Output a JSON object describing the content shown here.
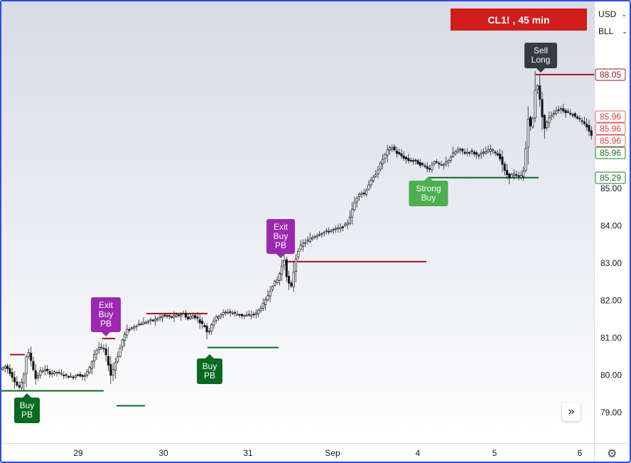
{
  "header": {
    "symbol_title": "CL1! , 45 min",
    "currency": "USD",
    "unit": "BLL"
  },
  "icons": {
    "chevron": "chevron-down-icon",
    "scroll": "double-chevron-right-icon",
    "settings": "gear-icon"
  },
  "colors": {
    "title_bg": "#d11d1d",
    "up_candle": "#0b6b0b",
    "down_candle": "#7a1010",
    "buy_label": "#0a6a1f",
    "strong_buy_label": "#4caf50",
    "exit_label": "#9c27b0",
    "sell_label": "#363a45",
    "support_line": "#0a6a1f",
    "resistance_line": "#a31515"
  },
  "chart_data": {
    "type": "candlestick",
    "x_axis": {
      "ticks": [
        "29",
        "30",
        "31",
        "Sep",
        "4",
        "5",
        "6"
      ]
    },
    "y_axis": {
      "ticks": [
        "79.00",
        "80.00",
        "81.00",
        "82.00",
        "83.00",
        "84.00",
        "85.00"
      ],
      "range": [
        78.4,
        89.9
      ]
    },
    "price_tags": [
      {
        "value": "88.05",
        "style": "red-outline"
      },
      {
        "value": "85.96",
        "style": "red-outline"
      },
      {
        "value": "85.96",
        "style": "red-outline"
      },
      {
        "value": "85.96",
        "style": "red-outline"
      },
      {
        "value": "85.96",
        "style": "green-outline"
      },
      {
        "value": "85.29",
        "style": "green-outline"
      }
    ],
    "signals": [
      {
        "text": [
          "Buy",
          "PB"
        ],
        "kind": "buy"
      },
      {
        "text": [
          "Exit",
          "Buy",
          "PB"
        ],
        "kind": "exit"
      },
      {
        "text": [
          "Buy",
          "PB"
        ],
        "kind": "buy"
      },
      {
        "text": [
          "Exit",
          "Buy",
          "PB"
        ],
        "kind": "exit"
      },
      {
        "text": [
          "Strong",
          "Buy"
        ],
        "kind": "strong"
      },
      {
        "text": [
          "Sell",
          "Long"
        ],
        "kind": "sell"
      }
    ],
    "levels": [
      {
        "price": 79.58,
        "type": "support"
      },
      {
        "price": 80.55,
        "type": "resistance"
      },
      {
        "price": 80.98,
        "type": "resistance"
      },
      {
        "price": 79.18,
        "type": "support"
      },
      {
        "price": 81.65,
        "type": "resistance"
      },
      {
        "price": 80.74,
        "type": "support"
      },
      {
        "price": 83.04,
        "type": "resistance"
      },
      {
        "price": 85.29,
        "type": "support"
      },
      {
        "price": 88.05,
        "type": "resistance"
      }
    ],
    "price_path": [
      [
        0,
        80.15
      ],
      [
        8,
        80.25
      ],
      [
        14,
        80.05
      ],
      [
        20,
        79.85
      ],
      [
        26,
        79.65
      ],
      [
        32,
        79.85
      ],
      [
        38,
        80.7
      ],
      [
        44,
        80.35
      ],
      [
        50,
        79.9
      ],
      [
        56,
        80.1
      ],
      [
        62,
        80.15
      ],
      [
        70,
        80.05
      ],
      [
        80,
        80.08
      ],
      [
        90,
        80.0
      ],
      [
        100,
        79.95
      ],
      [
        110,
        80.02
      ],
      [
        118,
        79.95
      ],
      [
        126,
        80.2
      ],
      [
        132,
        80.55
      ],
      [
        138,
        80.75
      ],
      [
        146,
        80.7
      ],
      [
        152,
        80.3
      ],
      [
        156,
        79.95
      ],
      [
        160,
        80.25
      ],
      [
        166,
        80.55
      ],
      [
        172,
        80.95
      ],
      [
        178,
        81.2
      ],
      [
        184,
        81.25
      ],
      [
        192,
        81.35
      ],
      [
        200,
        81.4
      ],
      [
        210,
        81.45
      ],
      [
        220,
        81.5
      ],
      [
        230,
        81.6
      ],
      [
        240,
        81.55
      ],
      [
        250,
        81.6
      ],
      [
        258,
        81.65
      ],
      [
        264,
        81.5
      ],
      [
        270,
        81.6
      ],
      [
        276,
        81.55
      ],
      [
        282,
        81.4
      ],
      [
        288,
        81.3
      ],
      [
        292,
        81.1
      ],
      [
        298,
        81.4
      ],
      [
        304,
        81.55
      ],
      [
        312,
        81.65
      ],
      [
        320,
        81.7
      ],
      [
        330,
        81.65
      ],
      [
        340,
        81.6
      ],
      [
        350,
        81.6
      ],
      [
        360,
        81.65
      ],
      [
        366,
        81.8
      ],
      [
        372,
        81.95
      ],
      [
        378,
        82.2
      ],
      [
        384,
        82.45
      ],
      [
        390,
        82.55
      ],
      [
        396,
        82.9
      ],
      [
        400,
        83.1
      ],
      [
        404,
        82.5
      ],
      [
        410,
        82.35
      ],
      [
        414,
        82.95
      ],
      [
        418,
        83.3
      ],
      [
        424,
        83.5
      ],
      [
        432,
        83.6
      ],
      [
        440,
        83.7
      ],
      [
        450,
        83.8
      ],
      [
        460,
        83.85
      ],
      [
        470,
        83.9
      ],
      [
        480,
        83.95
      ],
      [
        488,
        84.05
      ],
      [
        494,
        84.35
      ],
      [
        500,
        84.7
      ],
      [
        506,
        84.9
      ],
      [
        512,
        84.85
      ],
      [
        518,
        85.1
      ],
      [
        524,
        85.25
      ],
      [
        530,
        85.45
      ],
      [
        536,
        85.7
      ],
      [
        540,
        85.85
      ],
      [
        546,
        86.05
      ],
      [
        552,
        86.1
      ],
      [
        558,
        85.95
      ],
      [
        566,
        85.85
      ],
      [
        574,
        85.75
      ],
      [
        582,
        85.75
      ],
      [
        590,
        85.65
      ],
      [
        598,
        85.6
      ],
      [
        604,
        85.5
      ],
      [
        610,
        85.75
      ],
      [
        616,
        85.65
      ],
      [
        622,
        85.6
      ],
      [
        630,
        85.75
      ],
      [
        638,
        85.95
      ],
      [
        646,
        86.05
      ],
      [
        654,
        85.95
      ],
      [
        662,
        86.0
      ],
      [
        670,
        85.9
      ],
      [
        680,
        85.95
      ],
      [
        690,
        86.05
      ],
      [
        698,
        85.95
      ],
      [
        704,
        85.8
      ],
      [
        710,
        85.45
      ],
      [
        716,
        85.3
      ],
      [
        722,
        85.4
      ],
      [
        728,
        85.3
      ],
      [
        734,
        85.35
      ],
      [
        738,
        85.55
      ],
      [
        742,
        86.95
      ],
      [
        746,
        86.65
      ],
      [
        750,
        86.9
      ],
      [
        754,
        88.0
      ],
      [
        758,
        87.55
      ],
      [
        762,
        87.0
      ],
      [
        766,
        86.6
      ],
      [
        772,
        86.9
      ],
      [
        780,
        87.05
      ],
      [
        788,
        87.15
      ],
      [
        796,
        87.05
      ],
      [
        804,
        87.0
      ],
      [
        812,
        86.9
      ],
      [
        820,
        86.75
      ],
      [
        826,
        86.65
      ],
      [
        832,
        86.4
      ]
    ]
  }
}
